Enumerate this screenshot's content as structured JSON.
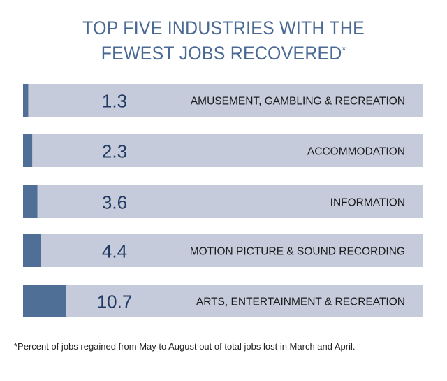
{
  "title_line1": "TOP FIVE INDUSTRIES WITH THE",
  "title_line2": "FEWEST JOBS RECOVERED",
  "title_mark": "*",
  "footnote": "*Percent of jobs regained from May to August out of total jobs lost in March and April.",
  "colors": {
    "title": "#4a6a94",
    "track": "#c6cbdc",
    "fill": "#4f6f96",
    "value_text": "#1f3a63",
    "label_text": "#1a1a1a"
  },
  "chart_data": {
    "type": "bar",
    "orientation": "horizontal",
    "categories": [
      "AMUSEMENT, GAMBLING & RECREATION",
      "ACCOMMODATION",
      "INFORMATION",
      "MOTION PICTURE & SOUND RECORDING",
      "ARTS, ENTERTAINMENT & RECREATION"
    ],
    "values": [
      1.3,
      2.3,
      3.6,
      4.4,
      10.7
    ],
    "value_labels": [
      "1.3",
      "2.3",
      "3.6",
      "4.4",
      "10.7"
    ],
    "xlim": [
      0,
      100
    ],
    "grid": false,
    "legend": "none"
  }
}
